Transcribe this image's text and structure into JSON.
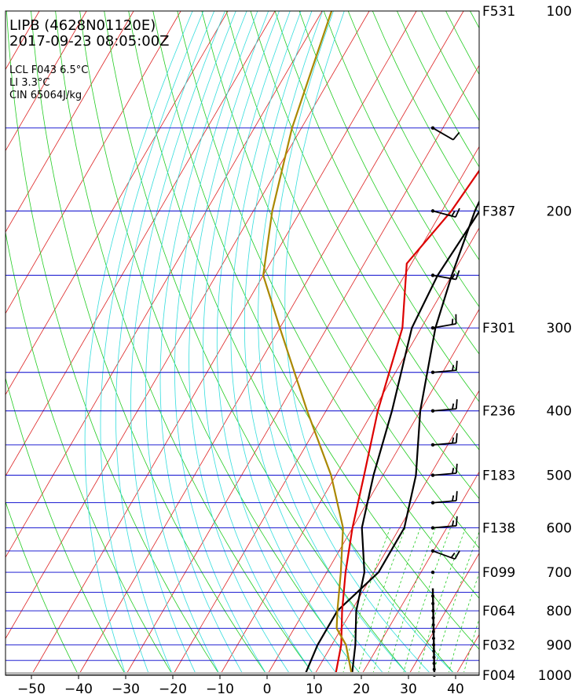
{
  "chart_data": {
    "type": "line",
    "title": "LIPB (4628N01120E)",
    "subtitle": "2017-09-23 08:05:00Z",
    "annotations": [
      "LCL F043 6.5°C",
      "LI 3.3°C",
      "CIN 65064J/kg"
    ],
    "x_ticks": [
      -50,
      -40,
      -30,
      -20,
      -10,
      0,
      10,
      20,
      30,
      40
    ],
    "pressure_labels": [
      {
        "p": 100,
        "label": "100",
        "fl": "F531"
      },
      {
        "p": 200,
        "label": "200",
        "fl": "F387"
      },
      {
        "p": 300,
        "label": "300",
        "fl": "F301"
      },
      {
        "p": 400,
        "label": "400",
        "fl": "F236"
      },
      {
        "p": 500,
        "label": "500",
        "fl": "F183"
      },
      {
        "p": 600,
        "label": "600",
        "fl": "F138"
      },
      {
        "p": 700,
        "label": "700",
        "fl": "F099"
      },
      {
        "p": 800,
        "label": "800",
        "fl": "F064"
      },
      {
        "p": 900,
        "label": "900",
        "fl": "F032"
      },
      {
        "p": 1000,
        "label": "1000",
        "fl": "F004"
      }
    ],
    "levels": [
      100,
      150,
      200,
      250,
      300,
      350,
      400,
      450,
      500,
      550,
      600,
      650,
      700,
      750,
      800,
      850,
      900,
      950,
      1000
    ],
    "series": [
      {
        "color": "#000000",
        "points": [
          [
            100,
            -2
          ],
          [
            150,
            -15
          ],
          [
            200,
            -13
          ],
          [
            250,
            -10
          ],
          [
            300,
            -7
          ],
          [
            400,
            0
          ],
          [
            500,
            7
          ],
          [
            600,
            11
          ],
          [
            700,
            11
          ],
          [
            800,
            7
          ],
          [
            900,
            7
          ],
          [
            1000,
            8
          ]
        ]
      },
      {
        "color": "#000000",
        "points": [
          [
            100,
            -8
          ],
          [
            150,
            -8
          ],
          [
            200,
            -12
          ],
          [
            250,
            -13
          ],
          [
            300,
            -12
          ],
          [
            400,
            -6
          ],
          [
            500,
            -2
          ],
          [
            600,
            2
          ],
          [
            700,
            8
          ],
          [
            800,
            11
          ],
          [
            900,
            15
          ],
          [
            1000,
            18
          ]
        ]
      },
      {
        "color": "#dd0000",
        "points": [
          [
            100,
            -10
          ],
          [
            150,
            -16
          ],
          [
            200,
            -18
          ],
          [
            240,
            -21
          ],
          [
            300,
            -14
          ],
          [
            400,
            -9
          ],
          [
            500,
            -4
          ],
          [
            600,
            0
          ],
          [
            700,
            4
          ],
          [
            800,
            8
          ],
          [
            900,
            12
          ],
          [
            1000,
            14.5
          ]
        ]
      },
      {
        "color": "#aa8800",
        "points": [
          [
            100,
            -68
          ],
          [
            150,
            -62
          ],
          [
            200,
            -56
          ],
          [
            250,
            -50
          ],
          [
            300,
            -40
          ],
          [
            400,
            -24
          ],
          [
            500,
            -11
          ],
          [
            600,
            -2
          ],
          [
            700,
            3
          ],
          [
            800,
            7
          ],
          [
            850,
            9
          ],
          [
            900,
            13
          ],
          [
            1000,
            18
          ]
        ]
      }
    ],
    "wind_barbs": [
      {
        "p": 150,
        "dir": 240,
        "kt": 10
      },
      {
        "p": 200,
        "dir": 255,
        "kt": 15
      },
      {
        "p": 250,
        "dir": 260,
        "kt": 15
      },
      {
        "p": 300,
        "dir": 280,
        "kt": 15
      },
      {
        "p": 350,
        "dir": 275,
        "kt": 15
      },
      {
        "p": 400,
        "dir": 275,
        "kt": 15
      },
      {
        "p": 450,
        "dir": 275,
        "kt": 15
      },
      {
        "p": 500,
        "dir": 275,
        "kt": 15
      },
      {
        "p": 550,
        "dir": 275,
        "kt": 15
      },
      {
        "p": 600,
        "dir": 275,
        "kt": 15
      },
      {
        "p": 650,
        "dir": 250,
        "kt": 15
      },
      {
        "p": 700,
        "dir": 0,
        "kt": 0
      }
    ],
    "grid": true
  }
}
